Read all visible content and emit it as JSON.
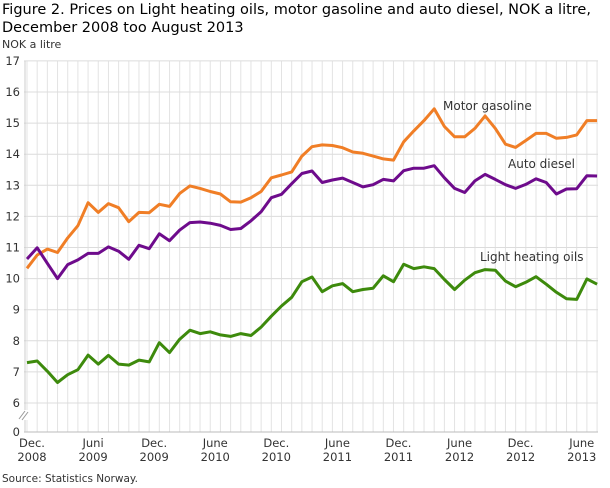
{
  "title": "Figure 2. Prices on Light heating oils, motor gasoline and auto diesel, NOK a litre, December 2008 too August 2013",
  "source": "Source: Statistics Norway.",
  "chart_data": {
    "type": "line",
    "title": "Figure 2. Prices on Light heating oils, motor gasoline and auto diesel, NOK a litre, December 2008 too August 2013",
    "ylabel": "NOK a litre",
    "xlabel": "",
    "x_start": "2008-12",
    "x_end": "2013-08",
    "x_interval": "month",
    "ylim": [
      0,
      17
    ],
    "y_axis_break": [
      0,
      6
    ],
    "y_ticks": [
      "0",
      "6",
      "7",
      "8",
      "9",
      "10",
      "11",
      "12",
      "13",
      "14",
      "15",
      "16",
      "17"
    ],
    "x_ticks": [
      {
        "month_index": 0,
        "line1": "Dec.",
        "line2": "2008"
      },
      {
        "month_index": 6,
        "line1": "Juni",
        "line2": "2009"
      },
      {
        "month_index": 12,
        "line1": "Dec.",
        "line2": "2009"
      },
      {
        "month_index": 18,
        "line1": "June",
        "line2": "2010"
      },
      {
        "month_index": 24,
        "line1": "Dec.",
        "line2": "2010"
      },
      {
        "month_index": 30,
        "line1": "June",
        "line2": "2011"
      },
      {
        "month_index": 36,
        "line1": "Dec.",
        "line2": "2011"
      },
      {
        "month_index": 42,
        "line1": "June",
        "line2": "2012"
      },
      {
        "month_index": 48,
        "line1": "Dec.",
        "line2": "2012"
      },
      {
        "month_index": 54,
        "line1": "June",
        "line2": "2013"
      }
    ],
    "grid": true,
    "legend": "inline labels",
    "series": [
      {
        "name": "Motor gasoline",
        "color": "#f07e26",
        "values": [
          10.33,
          10.76,
          10.95,
          10.84,
          11.31,
          11.7,
          12.44,
          12.13,
          12.41,
          12.28,
          11.83,
          12.13,
          12.12,
          12.39,
          12.32,
          12.74,
          12.98,
          12.9,
          12.8,
          12.72,
          12.47,
          12.46,
          12.6,
          12.8,
          13.24,
          13.33,
          13.43,
          13.94,
          14.24,
          14.3,
          14.28,
          14.21,
          14.07,
          14.03,
          13.94,
          13.85,
          13.81,
          14.4,
          14.75,
          15.08,
          15.46,
          14.89,
          14.56,
          14.56,
          14.83,
          15.23,
          14.83,
          14.32,
          14.22,
          14.44,
          14.67,
          14.67,
          14.51,
          14.54,
          14.62,
          15.08,
          15.08
        ]
      },
      {
        "name": "Auto diesel",
        "color": "#6e0b8c",
        "values": [
          10.63,
          10.99,
          10.49,
          10.0,
          10.45,
          10.6,
          10.81,
          10.81,
          11.02,
          10.88,
          10.62,
          11.07,
          10.96,
          11.44,
          11.22,
          11.56,
          11.8,
          11.82,
          11.78,
          11.71,
          11.58,
          11.61,
          11.86,
          12.15,
          12.6,
          12.71,
          13.05,
          13.38,
          13.46,
          13.09,
          13.17,
          13.23,
          13.09,
          12.95,
          13.02,
          13.19,
          13.14,
          13.47,
          13.55,
          13.55,
          13.63,
          13.24,
          12.9,
          12.77,
          13.14,
          13.35,
          13.19,
          13.02,
          12.9,
          13.03,
          13.21,
          13.09,
          12.72,
          12.88,
          12.89,
          13.31,
          13.3
        ]
      },
      {
        "name": "Light heating oils",
        "color": "#3d8a0c",
        "values": [
          7.3,
          7.35,
          7.02,
          6.66,
          6.91,
          7.07,
          7.54,
          7.25,
          7.53,
          7.25,
          7.22,
          7.38,
          7.32,
          7.94,
          7.62,
          8.05,
          8.34,
          8.23,
          8.29,
          8.19,
          8.14,
          8.23,
          8.17,
          8.44,
          8.79,
          9.12,
          9.4,
          9.9,
          10.05,
          9.58,
          9.77,
          9.84,
          9.58,
          9.65,
          9.69,
          10.09,
          9.9,
          10.46,
          10.32,
          10.38,
          10.32,
          9.97,
          9.65,
          9.95,
          10.19,
          10.29,
          10.27,
          9.92,
          9.74,
          9.88,
          10.06,
          9.82,
          9.56,
          9.35,
          9.33,
          9.99,
          9.82
        ]
      }
    ]
  }
}
